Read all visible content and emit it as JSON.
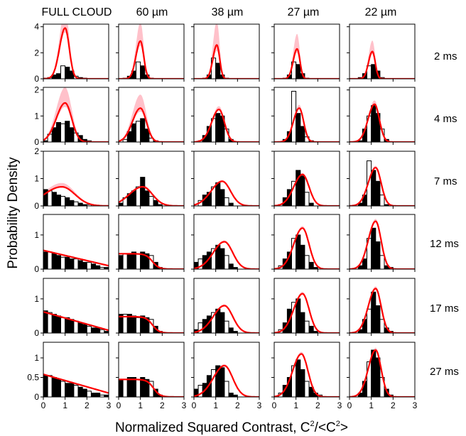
{
  "figure": {
    "xlabel": "Normalized Squared Contrast, C",
    "xlabel_sup1": "2",
    "xlabel_mid": "/<C",
    "xlabel_sup2": "2",
    "xlabel_end": ">",
    "ylabel": "Probability Density",
    "columns": [
      "FULL CLOUD",
      "60 µm",
      "38 µm",
      "27 µm",
      "22 µm"
    ],
    "rows": [
      "2 ms",
      "4 ms",
      "7 ms",
      "12 ms",
      "17 ms",
      "27 ms"
    ]
  },
  "colors": {
    "model_line": "#ff0000",
    "model_band": "#ffb6c1",
    "bars": "#000000",
    "outline_bars": "#000000"
  },
  "chart_data": {
    "type": "bar",
    "layout": "grid 6 rows x 5 columns of histogram panels with model curve overlay",
    "xlim": [
      0,
      3
    ],
    "x_ticks": [
      0,
      1,
      2,
      3
    ],
    "bin_edges": [
      0,
      0.2,
      0.4,
      0.6,
      0.8,
      1.0,
      1.2,
      1.4,
      1.6,
      1.8,
      2.0,
      2.2,
      2.4,
      2.6,
      2.8,
      3.0
    ],
    "row_ylims": [
      [
        0,
        4.2
      ],
      [
        0,
        2.1
      ],
      [
        0,
        2.0
      ],
      [
        0,
        1.6
      ],
      [
        0,
        1.6
      ],
      [
        0,
        1.4
      ]
    ],
    "row_yticks": [
      [
        0,
        2,
        4
      ],
      [
        0,
        1,
        2
      ],
      [
        0,
        1,
        2
      ],
      [
        0,
        1
      ],
      [
        0,
        1
      ],
      [
        0,
        0.5,
        1
      ]
    ],
    "row_ytick_labels": [
      [
        "0",
        "2",
        "4"
      ],
      [
        "0",
        "1",
        "2"
      ],
      [
        "0",
        "1",
        "2"
      ],
      [
        "0",
        "1"
      ],
      [
        "0",
        "1"
      ],
      [
        "0",
        "0.5",
        "1"
      ]
    ],
    "panels": [
      [
        {
          "peak": 1.0,
          "width": 0.19,
          "amp": 3.9,
          "band": 0.35,
          "hist": [
            0.05,
            0.1,
            0.3,
            0.4,
            1.0,
            0.9,
            0.6,
            0.2,
            0.1,
            0.05,
            0,
            0,
            0,
            0,
            0
          ]
        },
        {
          "peak": 1.0,
          "width": 0.15,
          "amp": 2.9,
          "band": 0.5,
          "hist": [
            0,
            0.05,
            0.2,
            0.6,
            1.3,
            1.0,
            0.3,
            0.05,
            0,
            0,
            0,
            0,
            0,
            0,
            0
          ]
        },
        {
          "peak": 1.05,
          "width": 0.13,
          "amp": 2.6,
          "band": 0.7,
          "hist": [
            0,
            0,
            0.05,
            0.3,
            1.6,
            1.2,
            0.3,
            0.05,
            0,
            0,
            0,
            0,
            0,
            0,
            0
          ]
        },
        {
          "peak": 1.05,
          "width": 0.13,
          "amp": 2.3,
          "band": 0.5,
          "hist": [
            0,
            0,
            0.05,
            0.3,
            1.3,
            1.1,
            0.4,
            0.05,
            0,
            0,
            0,
            0,
            0,
            0,
            0
          ]
        },
        {
          "peak": 1.05,
          "width": 0.13,
          "amp": 2.1,
          "band": 0.4,
          "hist": [
            0,
            0,
            0.1,
            0.4,
            1.0,
            1.1,
            0.6,
            0.1,
            0,
            0,
            0,
            0,
            0,
            0,
            0
          ]
        }
      ],
      [
        {
          "peak": 1.0,
          "width": 0.3,
          "amp": 1.5,
          "band": 0.4,
          "hist": [
            0.05,
            0.3,
            0.55,
            0.75,
            0.7,
            0.8,
            0.55,
            0.35,
            0.25,
            0.1,
            0.05,
            0,
            0,
            0,
            0
          ]
        },
        {
          "peak": 1.0,
          "width": 0.27,
          "amp": 1.3,
          "band": 0.4,
          "hist": [
            0,
            0.1,
            0.4,
            0.7,
            0.8,
            0.9,
            0.5,
            0.15,
            0.05,
            0,
            0,
            0,
            0,
            0,
            0
          ]
        },
        {
          "peak": 1.15,
          "width": 0.25,
          "amp": 1.25,
          "band": 0.1,
          "hist": [
            0,
            0.05,
            0.25,
            0.6,
            0.9,
            1.1,
            1.0,
            0.5,
            0.1,
            0,
            0,
            0,
            0,
            0,
            0
          ]
        },
        {
          "peak": 1.15,
          "width": 0.2,
          "amp": 1.3,
          "band": 0.1,
          "hist": [
            0,
            0,
            0.1,
            0.4,
            1.95,
            1.1,
            0.6,
            0.2,
            0.05,
            0,
            0,
            0,
            0,
            0,
            0
          ]
        },
        {
          "peak": 1.15,
          "width": 0.22,
          "amp": 1.45,
          "band": 0.1,
          "hist": [
            0,
            0,
            0.05,
            0.5,
            1.0,
            1.4,
            1.1,
            0.5,
            0.1,
            0,
            0,
            0,
            0,
            0,
            0
          ]
        }
      ],
      [
        {
          "peak": 0.85,
          "width": 0.6,
          "amp": 0.7,
          "band": 0.2,
          "hist": [
            0.6,
            0.55,
            0.5,
            0.4,
            0.35,
            0.3,
            0.2,
            0.15,
            0.1,
            0.05,
            0.05,
            0,
            0,
            0,
            0
          ]
        },
        {
          "peak": 1.1,
          "width": 0.45,
          "amp": 0.7,
          "band": 0.1,
          "hist": [
            0.1,
            0.3,
            0.45,
            0.55,
            0.7,
            1.05,
            0.55,
            0.35,
            0.2,
            0.05,
            0,
            0,
            0,
            0,
            0
          ]
        },
        {
          "peak": 1.3,
          "width": 0.38,
          "amp": 0.9,
          "band": 0.05,
          "hist": [
            0,
            0.2,
            0.4,
            0.5,
            0.7,
            0.85,
            0.6,
            0.3,
            0.1,
            0,
            0,
            0,
            0,
            0,
            0
          ]
        },
        {
          "peak": 1.3,
          "width": 0.3,
          "amp": 1.15,
          "band": 0.05,
          "hist": [
            0,
            0.05,
            0.3,
            0.6,
            0.9,
            1.3,
            1.1,
            0.5,
            0.1,
            0,
            0,
            0,
            0,
            0,
            0
          ]
        },
        {
          "peak": 1.2,
          "width": 0.25,
          "amp": 1.4,
          "band": 0.05,
          "hist": [
            0,
            0,
            0.1,
            0.4,
            1.65,
            1.3,
            0.9,
            0.4,
            0.05,
            0,
            0,
            0,
            0,
            0,
            0
          ]
        }
      ],
      [
        {
          "decay": 0.55,
          "slope": 0.15,
          "hist": [
            0.5,
            0.5,
            0.45,
            0.4,
            0.35,
            0.35,
            0.3,
            0.3,
            0.25,
            0.2,
            0.2,
            0.15,
            0.1,
            0.05,
            0.05
          ]
        },
        {
          "plateau": 0.45,
          "cut": 1.55,
          "hist": [
            0.4,
            0.45,
            0.45,
            0.5,
            0.45,
            0.5,
            0.45,
            0.4,
            0.2,
            0.05,
            0,
            0,
            0,
            0,
            0
          ]
        },
        {
          "peak": 1.4,
          "width": 0.38,
          "amp": 0.8,
          "band": 0.05,
          "hist": [
            0.2,
            0.3,
            0.4,
            0.5,
            0.6,
            0.7,
            0.6,
            0.4,
            0.15,
            0.05,
            0,
            0,
            0,
            0,
            0
          ]
        },
        {
          "peak": 1.3,
          "width": 0.3,
          "amp": 1.2,
          "band": 0.05,
          "hist": [
            0,
            0.1,
            0.3,
            0.5,
            0.9,
            1.0,
            0.7,
            0.4,
            0.2,
            0.05,
            0,
            0,
            0,
            0,
            0
          ]
        },
        {
          "peak": 1.2,
          "width": 0.25,
          "amp": 1.4,
          "band": 0.05,
          "hist": [
            0,
            0,
            0.1,
            0.3,
            0.9,
            1.2,
            0.8,
            0.4,
            0.1,
            0.05,
            0,
            0,
            0,
            0,
            0
          ]
        }
      ],
      [
        {
          "decay": 0.62,
          "slope": 0.18,
          "hist": [
            0.65,
            0.6,
            0.55,
            0.5,
            0.45,
            0.45,
            0.4,
            0.35,
            0.3,
            0.25,
            0.2,
            0.15,
            0.15,
            0.1,
            0.05
          ]
        },
        {
          "plateau": 0.48,
          "cut": 1.55,
          "hist": [
            0.55,
            0.55,
            0.55,
            0.5,
            0.45,
            0.5,
            0.45,
            0.4,
            0.2,
            0.05,
            0,
            0,
            0,
            0,
            0
          ]
        },
        {
          "peak": 1.4,
          "width": 0.38,
          "amp": 0.8,
          "band": 0.05,
          "hist": [
            0.1,
            0.3,
            0.4,
            0.5,
            0.6,
            0.7,
            0.6,
            0.35,
            0.15,
            0.05,
            0,
            0,
            0,
            0,
            0
          ]
        },
        {
          "peak": 1.3,
          "width": 0.3,
          "amp": 1.15,
          "band": 0.05,
          "hist": [
            0,
            0.1,
            0.3,
            0.7,
            0.9,
            1.0,
            0.6,
            0.35,
            0.2,
            0.05,
            0,
            0,
            0,
            0,
            0
          ]
        },
        {
          "peak": 1.2,
          "width": 0.25,
          "amp": 1.3,
          "band": 0.05,
          "hist": [
            0,
            0,
            0.1,
            0.4,
            0.7,
            1.2,
            0.8,
            0.4,
            0.15,
            0.05,
            0,
            0,
            0,
            0,
            0
          ]
        }
      ],
      [
        {
          "decay": 0.58,
          "slope": 0.16,
          "hist": [
            0.55,
            0.55,
            0.5,
            0.45,
            0.4,
            0.35,
            0.35,
            0.3,
            0.25,
            0.2,
            0.15,
            0.1,
            0.1,
            0.05,
            0.05
          ]
        },
        {
          "plateau": 0.45,
          "cut": 1.6,
          "hist": [
            0.45,
            0.45,
            0.5,
            0.5,
            0.45,
            0.5,
            0.45,
            0.4,
            0.2,
            0.05,
            0,
            0,
            0,
            0,
            0
          ]
        },
        {
          "peak": 1.4,
          "width": 0.38,
          "amp": 0.8,
          "band": 0.05,
          "hist": [
            0.2,
            0.3,
            0.35,
            0.55,
            0.7,
            0.8,
            0.75,
            0.4,
            0.1,
            0.05,
            0,
            0,
            0,
            0,
            0
          ]
        },
        {
          "peak": 1.25,
          "width": 0.3,
          "amp": 1.1,
          "band": 0.05,
          "hist": [
            0,
            0.1,
            0.3,
            0.5,
            0.8,
            0.95,
            0.7,
            0.4,
            0.25,
            0.1,
            0.05,
            0,
            0,
            0,
            0
          ]
        },
        {
          "peak": 1.2,
          "width": 0.25,
          "amp": 1.2,
          "band": 0.05,
          "hist": [
            0,
            0,
            0.1,
            0.4,
            0.9,
            1.2,
            1.0,
            0.5,
            0.2,
            0.05,
            0,
            0,
            0,
            0,
            0
          ]
        }
      ]
    ]
  }
}
